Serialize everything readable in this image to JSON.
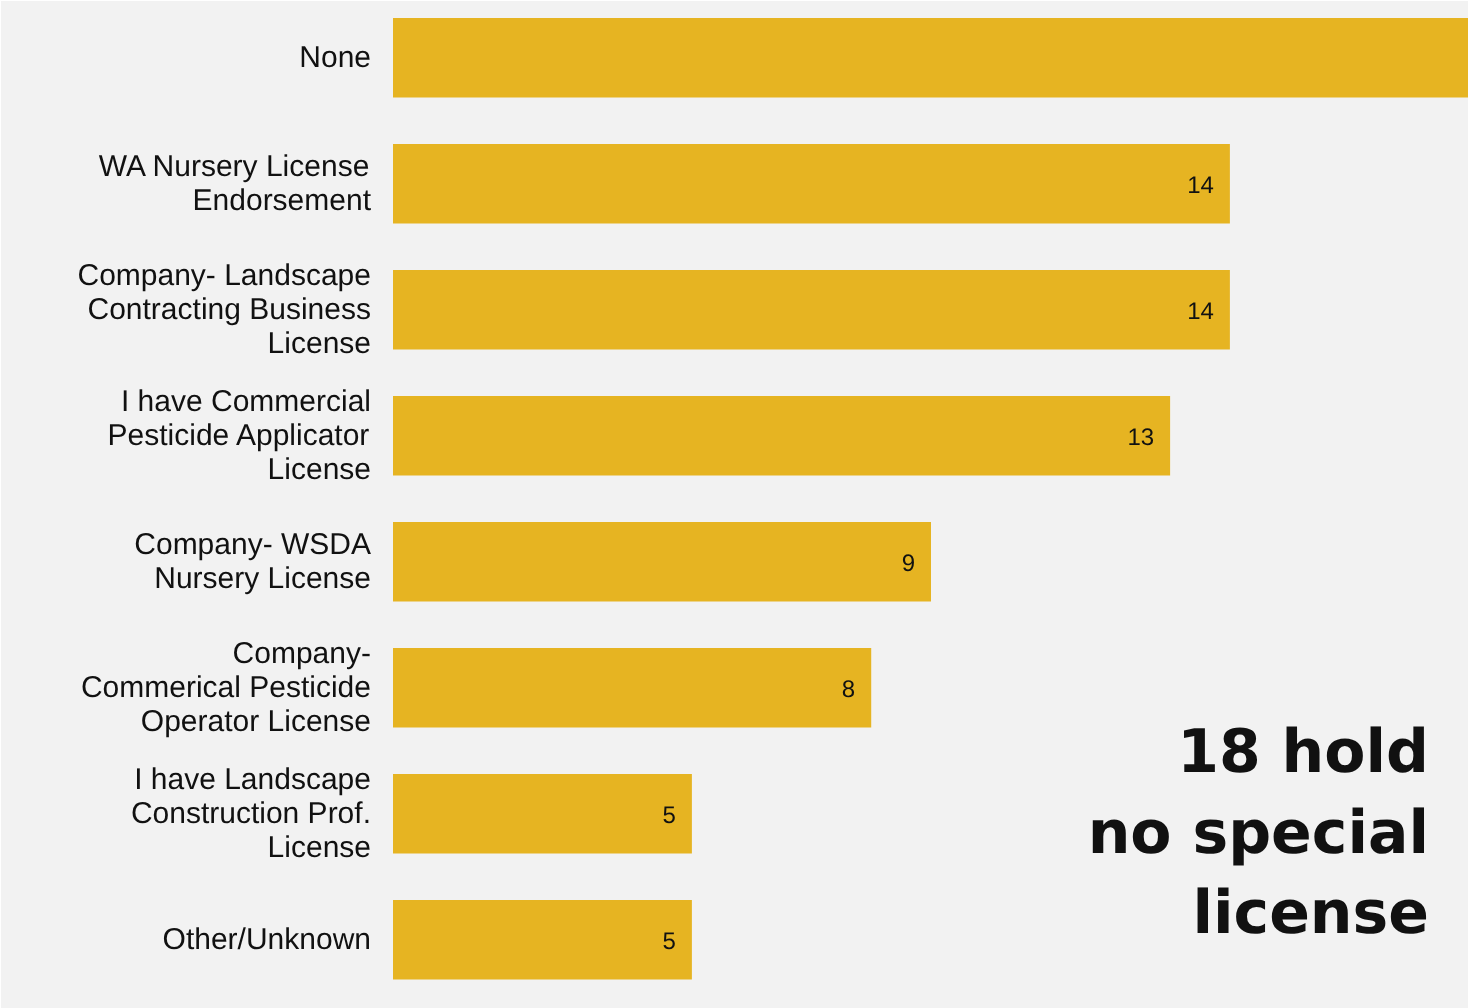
{
  "chart_data": {
    "type": "bar",
    "orientation": "horizontal",
    "categories": [
      "None",
      "WA Nursery License\nEndorsement",
      "Company- Landscape\nContracting Business\nLicense",
      "I have Commercial\nPesticide Applicator\nLicense",
      "Company- WSDA\nNursery License",
      "Company-\nCommerical Pesticide\nOperator License",
      "I have Landscape\nConstruction Prof.\nLicense",
      "Other/Unknown"
    ],
    "values": [
      18,
      14,
      14,
      13,
      9,
      8,
      5,
      5
    ],
    "value_labels": [
      null,
      "14",
      "14",
      "13",
      "9",
      "8",
      "5",
      "5"
    ],
    "color": "#e6b422",
    "grid": false,
    "annotations": [
      "18 hold\nno special\nlicense"
    ]
  }
}
